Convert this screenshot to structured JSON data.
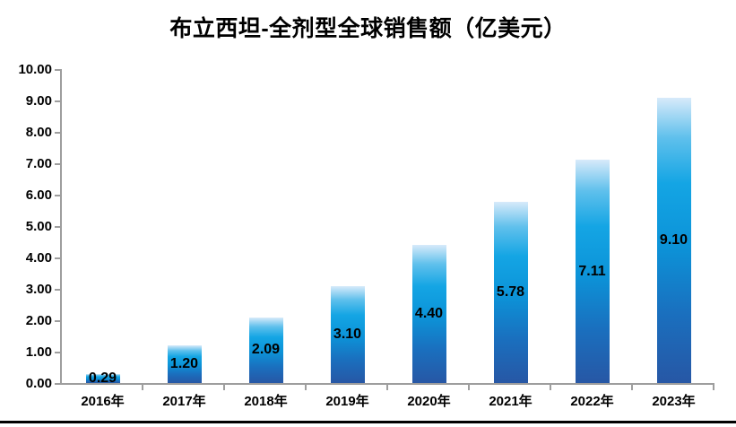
{
  "title": "布立西坦-全剂型全球销售额（亿美元）",
  "chart_data": {
    "type": "bar",
    "title": "布立西坦-全剂型全球销售额（亿美元）",
    "categories": [
      "2016年",
      "2017年",
      "2018年",
      "2019年",
      "2020年",
      "2021年",
      "2022年",
      "2023年"
    ],
    "values": [
      0.29,
      1.2,
      2.09,
      3.1,
      4.4,
      5.78,
      7.11,
      9.1
    ],
    "value_label_decimals": 2,
    "xlabel": "",
    "ylabel": "",
    "ylim": [
      0,
      10
    ],
    "ytick_step": 1,
    "ytick_decimals": 2,
    "grid": false,
    "legend": "none",
    "data_label_position": "inside-center",
    "colors": {
      "bar_gradient_top": "#d7eafa",
      "bar_gradient_mid": "#0c9ddd",
      "bar_gradient_bottom": "#2757a5",
      "axis": "#9e9e9e",
      "text": "#000000",
      "bottom_rule": "#000000",
      "background": "#ffffff"
    }
  }
}
